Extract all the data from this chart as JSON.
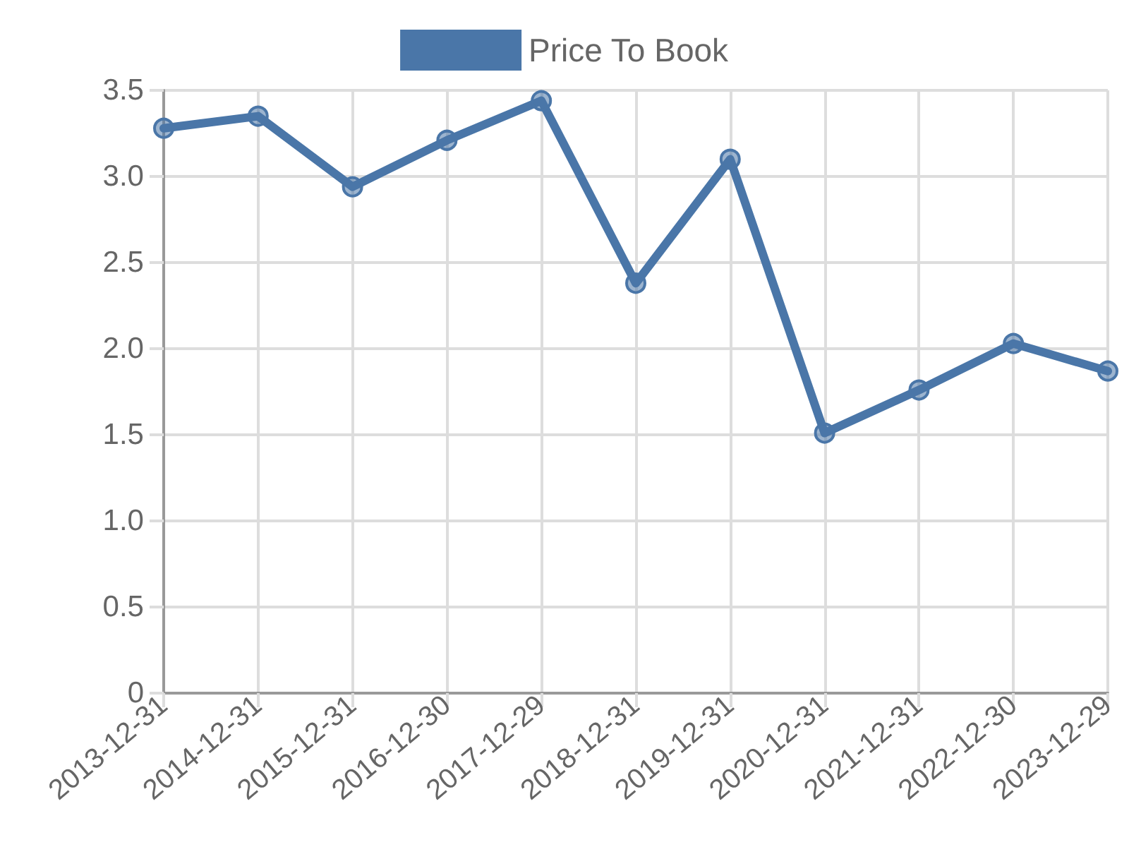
{
  "chart_data": {
    "type": "line",
    "categories": [
      "2013-12-31",
      "2014-12-31",
      "2015-12-31",
      "2016-12-30",
      "2017-12-29",
      "2018-12-31",
      "2019-12-31",
      "2020-12-31",
      "2021-12-31",
      "2022-12-30",
      "2023-12-29"
    ],
    "series": [
      {
        "name": "Price To Book",
        "color": "#4a76a8",
        "values": [
          3.28,
          3.35,
          2.94,
          3.21,
          3.44,
          2.38,
          3.1,
          1.51,
          1.76,
          2.03,
          1.87
        ]
      }
    ],
    "ylim": [
      0,
      3.5
    ],
    "yticks": [
      0,
      0.5,
      {
        "value": 1,
        "label": "1.0"
      },
      1.5,
      {
        "value": 2,
        "label": "2.0"
      },
      2.5,
      {
        "value": 3,
        "label": "3.0"
      },
      3.5
    ],
    "grid": true,
    "legend": "top",
    "marker": "circle",
    "line_style": "solid"
  }
}
